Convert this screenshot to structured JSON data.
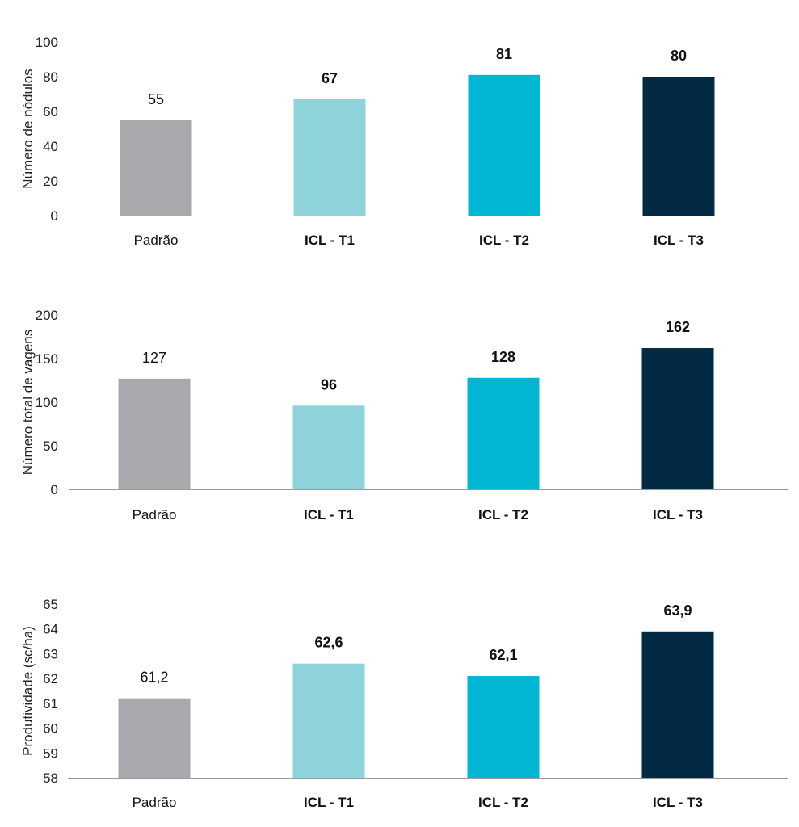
{
  "colors": {
    "gray": "#A7A9AC",
    "light_teal": "#8DD3D9",
    "cyan": "#00B6D2",
    "navy": "#032A45",
    "axis": "#9a9a9a"
  },
  "chart_data": [
    {
      "type": "bar",
      "ylabel": "Número de nódulos",
      "categories": [
        "Padrão",
        "ICL - T1",
        "ICL - T2",
        "ICL - T3"
      ],
      "values": [
        55,
        67,
        81,
        80
      ],
      "value_labels": [
        "55",
        "67",
        "81",
        "80"
      ],
      "yticks": [
        "0",
        "20",
        "40",
        "60",
        "80",
        "100"
      ],
      "ylim": [
        0,
        100
      ],
      "grid": false,
      "legend": "none"
    },
    {
      "type": "bar",
      "ylabel": "Número total de vagens",
      "categories": [
        "Padrão",
        "ICL - T1",
        "ICL - T2",
        "ICL - T3"
      ],
      "values": [
        127,
        96,
        128,
        162
      ],
      "value_labels": [
        "127",
        "96",
        "128",
        "162"
      ],
      "yticks": [
        "0",
        "50",
        "100",
        "150",
        "200"
      ],
      "ylim": [
        0,
        200
      ],
      "grid": false,
      "legend": "none"
    },
    {
      "type": "bar",
      "ylabel": "Produtividade (sc/ha)",
      "categories": [
        "Padrão",
        "ICL - T1",
        "ICL - T2",
        "ICL - T3"
      ],
      "values": [
        61.2,
        62.6,
        62.1,
        63.9
      ],
      "value_labels": [
        "61,2",
        "62,6",
        "62,1",
        "63,9"
      ],
      "yticks": [
        "58",
        "59",
        "60",
        "61",
        "62",
        "63",
        "64",
        "65"
      ],
      "ylim": [
        58,
        65
      ],
      "grid": false,
      "legend": "none"
    }
  ]
}
